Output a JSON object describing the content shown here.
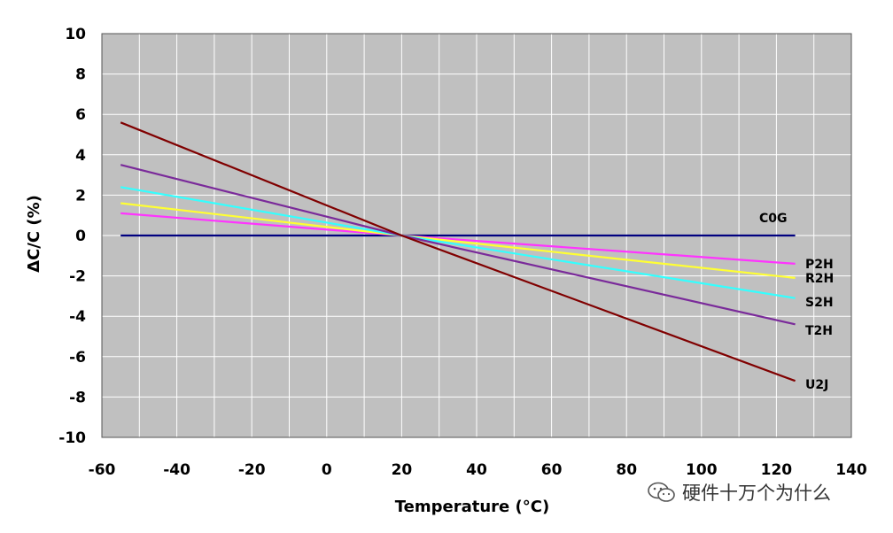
{
  "chart_data": {
    "type": "line",
    "xlabel": "Temperature (°C)",
    "ylabel": "ΔC/C (%)",
    "xlim": [
      -60,
      140
    ],
    "ylim": [
      -10,
      10
    ],
    "xticks": [
      -60,
      -40,
      -20,
      0,
      20,
      40,
      60,
      80,
      100,
      120,
      140
    ],
    "yticks": [
      -10,
      -8,
      -6,
      -4,
      -2,
      0,
      2,
      4,
      6,
      8,
      10
    ],
    "grid": true,
    "series": [
      {
        "name": "C0G",
        "color": "#000080",
        "x": [
          -55,
          125
        ],
        "y": [
          0,
          0
        ]
      },
      {
        "name": "P2H",
        "color": "#ff33ff",
        "x": [
          -55,
          20,
          125
        ],
        "y": [
          1.1,
          0,
          -1.4
        ]
      },
      {
        "name": "R2H",
        "color": "#ffff33",
        "x": [
          -55,
          20,
          125
        ],
        "y": [
          1.6,
          0,
          -2.1
        ]
      },
      {
        "name": "S2H",
        "color": "#33ffff",
        "x": [
          -55,
          20,
          125
        ],
        "y": [
          2.4,
          0,
          -3.1
        ]
      },
      {
        "name": "T2H",
        "color": "#7a2a9a",
        "x": [
          -55,
          20,
          125
        ],
        "y": [
          3.5,
          0,
          -4.4
        ]
      },
      {
        "name": "U2J",
        "color": "#800000",
        "x": [
          -55,
          20,
          125
        ],
        "y": [
          5.6,
          0,
          -7.2
        ]
      }
    ]
  },
  "watermark": {
    "text": "硬件十万个为什么",
    "icon": "wechat-icon"
  }
}
